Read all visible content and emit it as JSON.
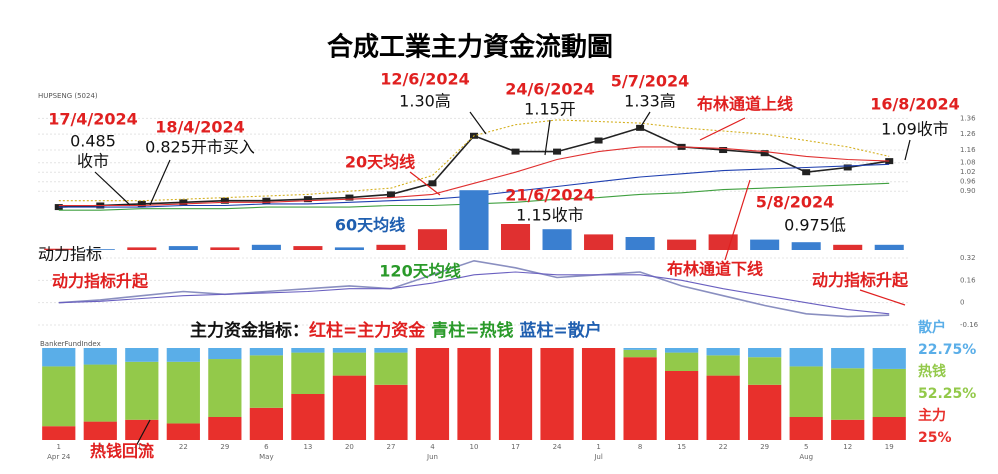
{
  "title": "合成工業主力資金流動圖",
  "header": "HUPSENG (5024)",
  "note": [
    "主力资金指标：",
    "红柱=主力资金",
    "青柱=热钱",
    "蓝柱=散户"
  ],
  "panel_label": "BankerFundIndex",
  "annotations": [
    {
      "text": "17/4/2024",
      "color": "#e02020"
    },
    {
      "text": "0.485",
      "color": "#111"
    },
    {
      "text": "收市",
      "color": "#111"
    },
    {
      "text": "18/4/2024",
      "color": "#e02020"
    },
    {
      "text": "0.825开市买入",
      "color": "#111"
    },
    {
      "text": "12/6/2024",
      "color": "#e02020"
    },
    {
      "text": "1.30高",
      "color": "#111"
    },
    {
      "text": "24/6/2024",
      "color": "#e02020"
    },
    {
      "text": "1.15开",
      "color": "#111"
    },
    {
      "text": "5/7/2024",
      "color": "#e02020"
    },
    {
      "text": "1.33高",
      "color": "#111"
    },
    {
      "text": "布林通道上线",
      "color": "#e02020"
    },
    {
      "text": "16/8/2024",
      "color": "#e02020"
    },
    {
      "text": "1.09收市",
      "color": "#111"
    },
    {
      "text": "20天均线",
      "color": "#e02020"
    },
    {
      "text": "21/6/2024",
      "color": "#e02020"
    },
    {
      "text": "1.15收市",
      "color": "#111"
    },
    {
      "text": "5/8/2024",
      "color": "#e02020"
    },
    {
      "text": "0.975低",
      "color": "#111"
    },
    {
      "text": "60天均线",
      "color": "#1f5fb0"
    },
    {
      "text": "120天均线",
      "color": "#2a9a2a"
    },
    {
      "text": "布林通道下线",
      "color": "#e02020"
    },
    {
      "text": "动力指标",
      "color": "#111"
    },
    {
      "text": "动力指标升起",
      "color": "#e02020"
    },
    {
      "text": "动力指标升起",
      "color": "#e02020"
    },
    {
      "text": "热钱回流",
      "color": "#e02020"
    }
  ],
  "chart_data": [
    {
      "type": "line",
      "ylim": [
        0.75,
        1.4
      ],
      "yticks": [
        {
          "value": 0.9,
          "label": "0.90"
        },
        0.96,
        1.02,
        1.08,
        1.16,
        1.26,
        1.36
      ],
      "series": [
        {
          "name": "close",
          "color": "#222",
          "values": [
            0.8,
            0.81,
            0.82,
            0.83,
            0.84,
            0.84,
            0.85,
            0.86,
            0.88,
            0.95,
            1.25,
            1.15,
            1.15,
            1.22,
            1.3,
            1.18,
            1.16,
            1.14,
            1.02,
            1.05,
            1.09
          ]
        },
        {
          "name": "MA20",
          "color": "#e03030",
          "values": [
            0.81,
            0.81,
            0.81,
            0.82,
            0.83,
            0.83,
            0.84,
            0.85,
            0.86,
            0.88,
            0.95,
            1.02,
            1.1,
            1.15,
            1.18,
            1.18,
            1.17,
            1.15,
            1.12,
            1.1,
            1.09
          ]
        },
        {
          "name": "MA60",
          "color": "#2040b0",
          "values": [
            0.8,
            0.8,
            0.8,
            0.81,
            0.81,
            0.82,
            0.82,
            0.83,
            0.84,
            0.85,
            0.87,
            0.9,
            0.93,
            0.96,
            0.99,
            1.01,
            1.03,
            1.04,
            1.05,
            1.06,
            1.07
          ]
        },
        {
          "name": "MA120",
          "color": "#40a040",
          "values": [
            0.78,
            0.78,
            0.79,
            0.79,
            0.79,
            0.8,
            0.8,
            0.8,
            0.81,
            0.81,
            0.82,
            0.83,
            0.85,
            0.86,
            0.88,
            0.89,
            0.91,
            0.92,
            0.93,
            0.94,
            0.95
          ]
        },
        {
          "name": "Bollinger upper",
          "color": "#d4b020",
          "values": [
            0.84,
            0.84,
            0.84,
            0.85,
            0.86,
            0.87,
            0.88,
            0.9,
            0.92,
            1.0,
            1.25,
            1.32,
            1.35,
            1.34,
            1.33,
            1.3,
            1.28,
            1.26,
            1.22,
            1.18,
            1.12
          ]
        }
      ]
    },
    {
      "type": "bar",
      "ylim": [
        0,
        25
      ],
      "values": [
        0.5,
        0.3,
        1,
        1.5,
        1,
        2,
        1.5,
        1,
        2,
        8,
        23,
        10,
        8,
        6,
        5,
        4,
        6,
        4,
        3,
        2,
        2
      ],
      "colors": [
        "#e03030",
        "#3a7fd0",
        "#e03030",
        "#3a7fd0",
        "#e03030",
        "#3a7fd0",
        "#e03030",
        "#3a7fd0",
        "#e03030",
        "#e03030",
        "#3a7fd0",
        "#e03030",
        "#3a7fd0",
        "#e03030",
        "#3a7fd0",
        "#e03030",
        "#e03030",
        "#3a7fd0",
        "#3a7fd0",
        "#e03030",
        "#3a7fd0"
      ]
    },
    {
      "type": "line",
      "ylim": [
        -0.16,
        0.32
      ],
      "yticks": [
        -0.16,
        0,
        0.16,
        0.32
      ],
      "series": [
        {
          "name": "momentum",
          "color": "#8a8fc0",
          "values": [
            0.0,
            0.02,
            0.05,
            0.08,
            0.06,
            0.08,
            0.1,
            0.12,
            0.1,
            0.2,
            0.3,
            0.25,
            0.18,
            0.2,
            0.22,
            0.12,
            0.05,
            -0.02,
            -0.08,
            -0.1,
            -0.09
          ]
        },
        {
          "name": "signal",
          "color": "#6a60c0",
          "values": [
            0.0,
            0.01,
            0.03,
            0.05,
            0.06,
            0.07,
            0.08,
            0.1,
            0.1,
            0.14,
            0.2,
            0.22,
            0.2,
            0.2,
            0.2,
            0.16,
            0.1,
            0.05,
            0.0,
            -0.05,
            -0.08
          ]
        }
      ]
    },
    {
      "type": "stacked_bar",
      "ylim": [
        0,
        100
      ],
      "categories": [
        "1",
        "8",
        "15",
        "22",
        "29",
        "6",
        "13",
        "20",
        "27",
        "4",
        "10",
        "17",
        "24",
        "1",
        "8",
        "15",
        "22",
        "29",
        "5",
        "12",
        "19"
      ],
      "months": [
        "Apr 24",
        "May",
        "Jun",
        "Jul",
        "Aug"
      ],
      "series": [
        {
          "name": "主力",
          "color": "#e8302c",
          "values": [
            15,
            20,
            22,
            18,
            25,
            35,
            50,
            70,
            60,
            100,
            100,
            100,
            100,
            100,
            90,
            75,
            70,
            60,
            25,
            22,
            25
          ],
          "value_labels": [
            null,
            null,
            null,
            null,
            null,
            null,
            null,
            null,
            null,
            null,
            null,
            null,
            null,
            null,
            null,
            null,
            null,
            null,
            null,
            null,
            "25%"
          ]
        },
        {
          "name": "热钱",
          "color": "#93c94a",
          "values": [
            65,
            62,
            63,
            67,
            63,
            57,
            45,
            25,
            35,
            0,
            0,
            0,
            0,
            0,
            8,
            20,
            22,
            30,
            55,
            56,
            52.25
          ],
          "value_labels": [
            null,
            null,
            null,
            null,
            null,
            null,
            null,
            null,
            null,
            null,
            null,
            null,
            null,
            null,
            null,
            null,
            null,
            null,
            null,
            null,
            "52.25%"
          ]
        },
        {
          "name": "散户",
          "color": "#5aaee8",
          "values": [
            20,
            18,
            15,
            15,
            12,
            8,
            5,
            5,
            5,
            0,
            0,
            0,
            0,
            0,
            2,
            5,
            8,
            10,
            20,
            22,
            22.75
          ],
          "value_labels": [
            null,
            null,
            null,
            null,
            null,
            null,
            null,
            null,
            null,
            null,
            null,
            null,
            null,
            null,
            null,
            null,
            null,
            null,
            null,
            null,
            "22.75%"
          ]
        }
      ]
    }
  ]
}
